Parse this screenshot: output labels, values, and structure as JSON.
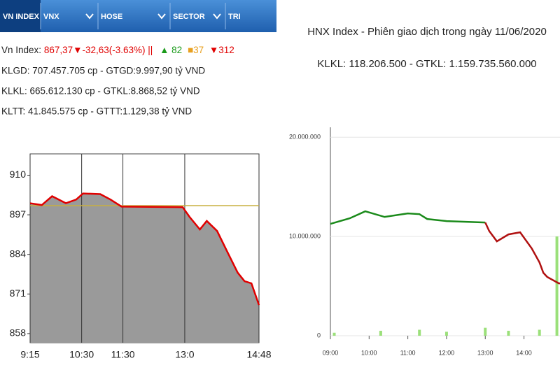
{
  "tabs": [
    "VN INDEX",
    "VNX",
    "HOSE",
    "SECTOR",
    "TRI"
  ],
  "info": {
    "index_line": [
      "Vn Index:",
      "867,37▼-32,63(-3.63%)",
      "||",
      "▲ 82",
      "■37",
      "▼312"
    ],
    "lines": [
      "KLGD: 707.457.705 cp - GTGD:9.997,90 tỷ VND",
      "KLKL: 665.612.130 cp - GTKL:8.868,52 tỷ VND",
      "KLTT: 41.845.575 cp - GTTT:1.129,38 tỷ VND"
    ]
  },
  "chart_data": [
    {
      "type": "area",
      "color": "#e00000",
      "fill": "#9a9a9a",
      "reference": 900,
      "reference_color": "#c8b040",
      "x": [
        0,
        17,
        32,
        52,
        67,
        77,
        102,
        117,
        133,
        222,
        232,
        247,
        257,
        272,
        287,
        302,
        312,
        322,
        333
      ],
      "values": [
        900.8,
        900.2,
        903.1,
        900.8,
        902,
        904,
        903.8,
        902,
        899.7,
        899.5,
        896.3,
        892.2,
        895,
        891.7,
        884.8,
        878,
        875.2,
        874.5,
        867.37
      ],
      "xlim": [
        0,
        333
      ],
      "ylim": [
        855,
        917
      ],
      "xticks": [
        {
          "value": 0,
          "label": "9:15"
        },
        {
          "value": 75,
          "label": "10:30"
        },
        {
          "value": 135,
          "label": "11:30"
        },
        {
          "value": 225,
          "label": "13:0"
        },
        {
          "value": 333,
          "label": "14:48"
        }
      ],
      "yticks": [
        910,
        897,
        884,
        871,
        858
      ]
    },
    {
      "type": "line",
      "title": "HNX Index - Phiên giao dịch trong ngày 11/06/2020",
      "subtitle": "KLKL: 118.206.500 - GTKL: 1.159.735.560.000",
      "series": [
        {
          "color": "#1a8a1a",
          "x": [
            9.0,
            9.5,
            9.9,
            10.4,
            11.0,
            11.3,
            11.5,
            12.0,
            13.0
          ],
          "values": [
            11270000,
            11830000,
            12540000,
            11970000,
            12320000,
            12250000,
            11760000,
            11550000,
            11410000
          ]
        },
        {
          "color": "#b01010",
          "x": [
            13.0,
            13.1,
            13.3,
            13.6,
            13.9,
            14.2,
            14.4,
            14.5,
            14.6,
            14.9,
            14.95
          ],
          "values": [
            11410000,
            10560000,
            9510000,
            10210000,
            10420000,
            8800000,
            7390000,
            6340000,
            5920000,
            5280000,
            5280000
          ]
        }
      ],
      "bars": {
        "color": "#9be07a",
        "x": [
          9.1,
          10.3,
          11.3,
          12.0,
          13.0,
          13.6,
          14.4,
          14.85
        ],
        "values": [
          300000,
          500000,
          600000,
          400000,
          800000,
          500000,
          600000,
          10000000
        ]
      },
      "xlim": [
        9,
        14.93
      ],
      "ylim": [
        0,
        21000000
      ],
      "xticks": [
        {
          "value": 9,
          "label": "09:00"
        },
        {
          "value": 10,
          "label": "10:00"
        },
        {
          "value": 11,
          "label": "11:00"
        },
        {
          "value": 12,
          "label": "12:00"
        },
        {
          "value": 13,
          "label": "13:00"
        },
        {
          "value": 14,
          "label": "14:00"
        }
      ],
      "yticks": [
        {
          "value": 20000000,
          "label": "20.000.000"
        },
        {
          "value": 10000000,
          "label": "10.000.000"
        },
        0
      ]
    }
  ]
}
